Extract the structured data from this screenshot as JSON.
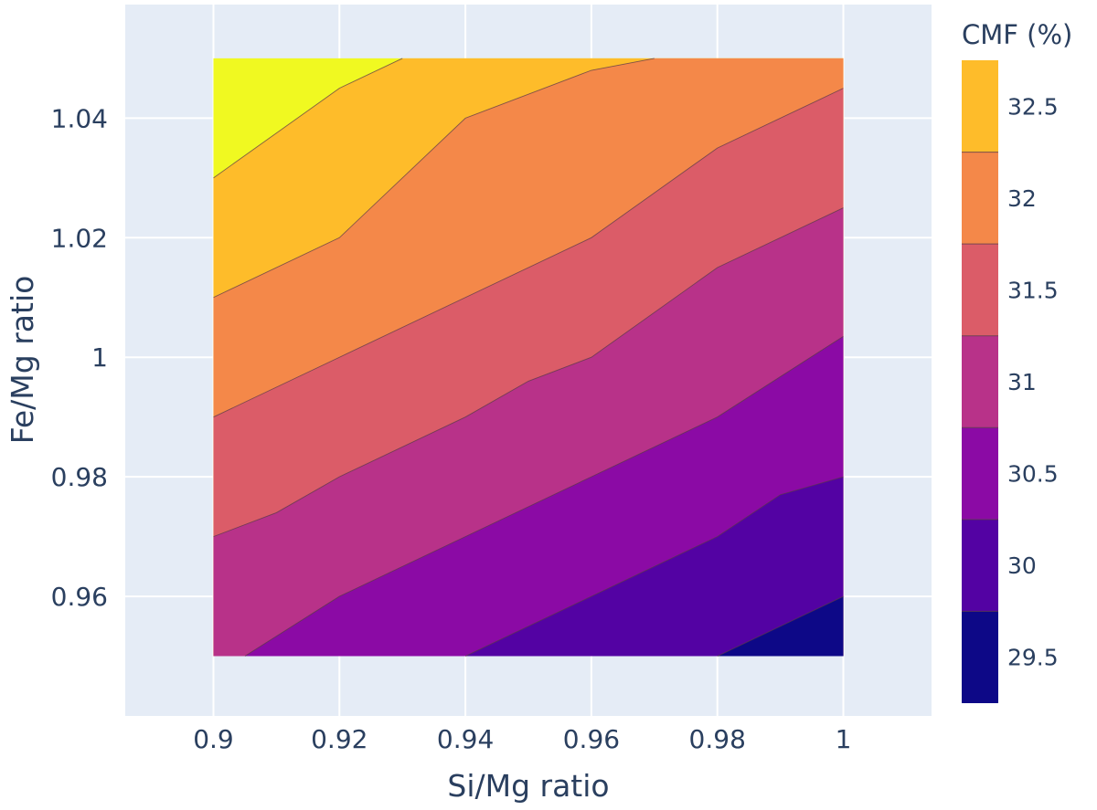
{
  "chart_data": {
    "type": "contour",
    "xlabel": "Si/Mg ratio",
    "ylabel": "Fe/Mg ratio",
    "xlim": [
      0.886,
      1.014
    ],
    "ylim": [
      0.94,
      1.059
    ],
    "x_ticks": [
      0.9,
      0.92,
      0.94,
      0.96,
      0.98,
      1
    ],
    "x_tick_labels": [
      "0.9",
      "0.92",
      "0.94",
      "0.96",
      "0.98",
      "1"
    ],
    "y_ticks": [
      0.96,
      0.98,
      1.0,
      1.02,
      1.04
    ],
    "y_tick_labels": [
      "0.96",
      "0.98",
      "1",
      "1.02",
      "1.04"
    ],
    "grid": true,
    "colorbar": {
      "title": "CMF (%)",
      "range": [
        29.25,
        32.75
      ],
      "tick_values": [
        29.5,
        30,
        30.5,
        31,
        31.5,
        32,
        32.5
      ],
      "tick_labels": [
        "29.5",
        "30",
        "30.5",
        "31",
        "31.5",
        "32",
        "32.5"
      ],
      "levels": [
        29.75,
        30.25,
        30.75,
        31.25,
        31.75,
        32.25
      ],
      "colors": [
        "#0d0887",
        "#5302a3",
        "#8b0aa5",
        "#b83289",
        "#db5c68",
        "#f48849",
        "#febc2a",
        "#f0f921"
      ]
    },
    "data_extent": {
      "x": [
        0.9,
        1.0
      ],
      "y": [
        0.95,
        1.05
      ]
    },
    "contours": [
      {
        "level": 29.75,
        "points": [
          [
            0.98,
            0.95
          ],
          [
            1.0,
            0.96
          ]
        ]
      },
      {
        "level": 30.25,
        "points": [
          [
            0.94,
            0.95
          ],
          [
            0.98,
            0.97
          ],
          [
            0.99,
            0.977
          ],
          [
            1.0,
            0.98
          ]
        ]
      },
      {
        "level": 30.75,
        "points": [
          [
            0.905,
            0.95
          ],
          [
            0.92,
            0.96
          ],
          [
            0.94,
            0.97
          ],
          [
            0.96,
            0.98
          ],
          [
            0.98,
            0.99
          ],
          [
            1.0,
            1.0035
          ]
        ]
      },
      {
        "level": 31.25,
        "points": [
          [
            0.9,
            0.97
          ],
          [
            0.91,
            0.974
          ],
          [
            0.92,
            0.98
          ],
          [
            0.94,
            0.99
          ],
          [
            0.95,
            0.996
          ],
          [
            0.96,
            1.0
          ],
          [
            0.98,
            1.015
          ],
          [
            1.0,
            1.025
          ]
        ]
      },
      {
        "level": 31.75,
        "points": [
          [
            0.9,
            0.99
          ],
          [
            0.92,
            1.0
          ],
          [
            0.94,
            1.01
          ],
          [
            0.96,
            1.02
          ],
          [
            0.98,
            1.035
          ],
          [
            1.0,
            1.045
          ]
        ]
      },
      {
        "level": 32.25,
        "points": [
          [
            0.9,
            1.01
          ],
          [
            0.92,
            1.02
          ],
          [
            0.94,
            1.04
          ],
          [
            0.96,
            1.048
          ],
          [
            0.97,
            1.05
          ]
        ]
      },
      {
        "level": 32.75,
        "points": [
          [
            0.9,
            1.03
          ],
          [
            0.92,
            1.045
          ],
          [
            0.93,
            1.05
          ]
        ]
      }
    ]
  }
}
